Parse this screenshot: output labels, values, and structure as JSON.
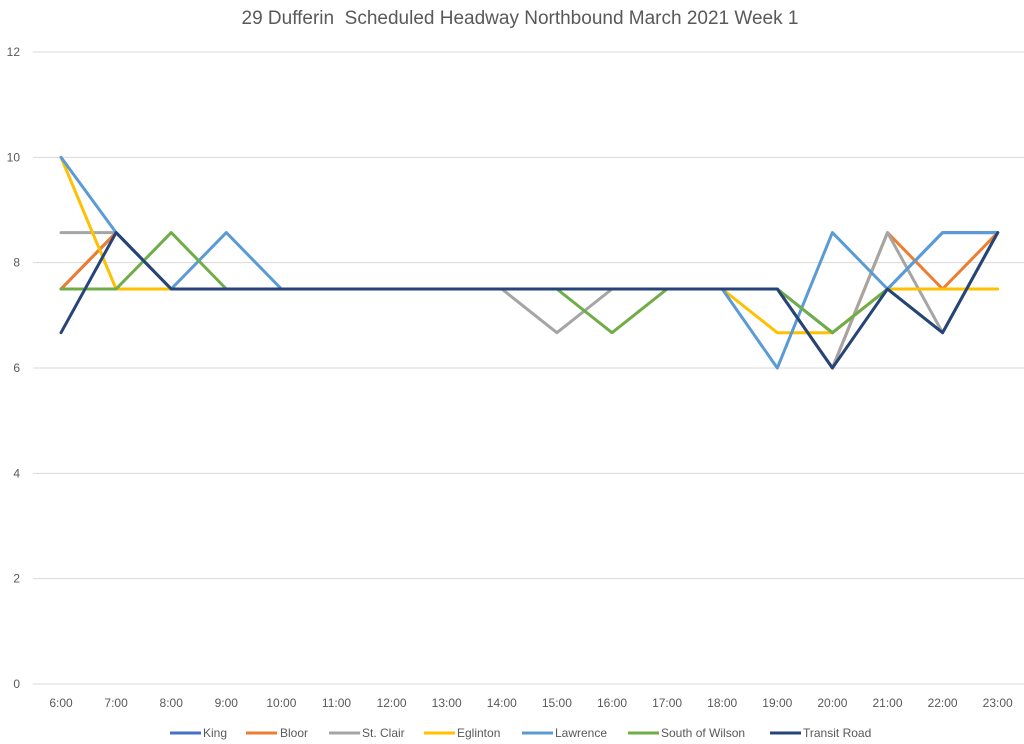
{
  "chart_data": {
    "type": "line",
    "title": "29 Dufferin  Scheduled Headway Northbound March 2021 Week 1",
    "xlabel": "",
    "ylabel": "",
    "ylim": [
      0,
      12
    ],
    "yticks": [
      0,
      2,
      4,
      6,
      8,
      10,
      12
    ],
    "grid": true,
    "legend_position": "bottom",
    "categories": [
      "6:00",
      "7:00",
      "8:00",
      "9:00",
      "10:00",
      "11:00",
      "12:00",
      "13:00",
      "14:00",
      "15:00",
      "16:00",
      "17:00",
      "18:00",
      "19:00",
      "20:00",
      "21:00",
      "22:00",
      "23:00"
    ],
    "series": [
      {
        "name": "King",
        "color": "#4472C4",
        "values": [
          7.5,
          8.57,
          7.5,
          7.5,
          7.5,
          7.5,
          7.5,
          7.5,
          7.5,
          7.5,
          7.5,
          7.5,
          7.5,
          7.5,
          6.67,
          7.5,
          8.57,
          8.57
        ]
      },
      {
        "name": "Bloor",
        "color": "#ED7D31",
        "values": [
          7.5,
          8.57,
          7.5,
          7.5,
          7.5,
          7.5,
          7.5,
          7.5,
          7.5,
          7.5,
          7.5,
          7.5,
          7.5,
          7.5,
          6.0,
          8.57,
          7.5,
          8.57
        ]
      },
      {
        "name": "St. Clair",
        "color": "#A5A5A5",
        "values": [
          8.57,
          8.57,
          7.5,
          7.5,
          7.5,
          7.5,
          7.5,
          7.5,
          7.5,
          6.67,
          7.5,
          7.5,
          7.5,
          7.5,
          6.0,
          8.57,
          6.67,
          8.57
        ]
      },
      {
        "name": "Eglinton",
        "color": "#FFC000",
        "values": [
          10.0,
          7.5,
          7.5,
          7.5,
          7.5,
          7.5,
          7.5,
          7.5,
          7.5,
          7.5,
          7.5,
          7.5,
          7.5,
          6.67,
          6.67,
          7.5,
          7.5,
          7.5
        ]
      },
      {
        "name": "Lawrence",
        "color": "#5B9BD5",
        "values": [
          10.0,
          8.57,
          7.5,
          8.57,
          7.5,
          7.5,
          7.5,
          7.5,
          7.5,
          7.5,
          7.5,
          7.5,
          7.5,
          6.0,
          8.57,
          7.5,
          8.57,
          8.57
        ]
      },
      {
        "name": "South of Wilson",
        "color": "#70AD47",
        "values": [
          7.5,
          7.5,
          8.57,
          7.5,
          7.5,
          7.5,
          7.5,
          7.5,
          7.5,
          7.5,
          6.67,
          7.5,
          7.5,
          7.5,
          6.67,
          7.5,
          6.67,
          8.57
        ]
      },
      {
        "name": "Transit Road",
        "color": "#264478",
        "values": [
          6.67,
          8.57,
          7.5,
          7.5,
          7.5,
          7.5,
          7.5,
          7.5,
          7.5,
          7.5,
          7.5,
          7.5,
          7.5,
          7.5,
          6.0,
          7.5,
          6.67,
          8.57
        ]
      }
    ]
  }
}
